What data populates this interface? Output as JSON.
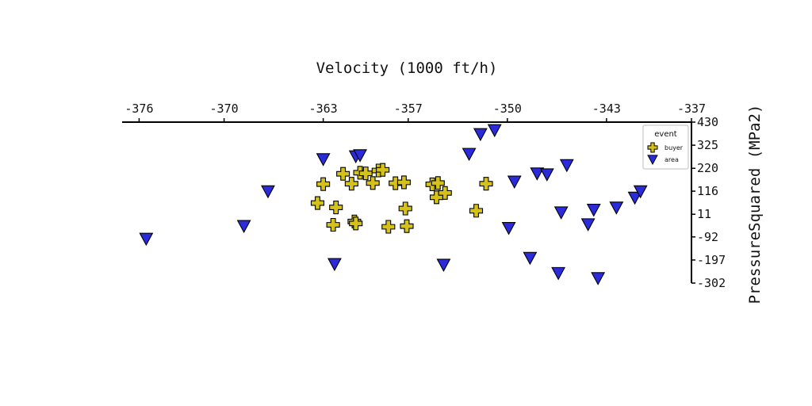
{
  "chart_data": {
    "type": "scatter",
    "xlabel": "Velocity (1000 ft/h)",
    "ylabel": "PressureSquared (MPa2)",
    "xlim": [
      -377.2,
      -337
    ],
    "ylim": [
      -302,
      430
    ],
    "x_ticks": [
      -376,
      -370,
      -363,
      -357,
      -350,
      -343,
      -337
    ],
    "x_tick_labels": [
      "-376",
      "-370",
      "-363",
      "-357",
      "-350",
      "-343",
      "-337"
    ],
    "y_ticks": [
      430,
      325,
      220,
      116,
      11,
      -92,
      -197,
      -302
    ],
    "y_tick_labels": [
      "430",
      "325",
      "220",
      "116",
      "11",
      "-92",
      "-197",
      "-302"
    ],
    "x_axis_position": "top",
    "y_axis_position": "right",
    "grid": false,
    "legend": {
      "title": "event",
      "position": "top-right"
    },
    "series": [
      {
        "name": "buyer",
        "marker": "plus",
        "color": "#d4c21a",
        "points": [
          [
            -363.4,
            62
          ],
          [
            -363.0,
            148
          ],
          [
            -362.1,
            42
          ],
          [
            -362.3,
            -37
          ],
          [
            -361.6,
            195
          ],
          [
            -361.0,
            150
          ],
          [
            -360.8,
            -22
          ],
          [
            -360.7,
            -31
          ],
          [
            -360.4,
            200
          ],
          [
            -360.0,
            197
          ],
          [
            -359.5,
            153
          ],
          [
            -359.1,
            210
          ],
          [
            -358.8,
            213
          ],
          [
            -358.4,
            -46
          ],
          [
            -357.9,
            152
          ],
          [
            -357.3,
            156
          ],
          [
            -357.1,
            -43
          ],
          [
            -357.2,
            37
          ],
          [
            -355.3,
            147
          ],
          [
            -354.9,
            153
          ],
          [
            -355.0,
            88
          ],
          [
            -354.4,
            108
          ],
          [
            -352.2,
            27
          ],
          [
            -351.5,
            150
          ]
        ]
      },
      {
        "name": "area",
        "marker": "triangle-down",
        "color": "#2b2bdc",
        "points": [
          [
            -375.5,
            -100
          ],
          [
            -368.6,
            -42
          ],
          [
            -366.9,
            116
          ],
          [
            -363.0,
            262
          ],
          [
            -362.2,
            -215
          ],
          [
            -360.7,
            275
          ],
          [
            -360.4,
            280
          ],
          [
            -354.5,
            -218
          ],
          [
            -352.7,
            286
          ],
          [
            -351.9,
            376
          ],
          [
            -350.9,
            394
          ],
          [
            -349.9,
            -51
          ],
          [
            -349.5,
            160
          ],
          [
            -348.4,
            -187
          ],
          [
            -347.9,
            197
          ],
          [
            -347.2,
            193
          ],
          [
            -346.4,
            -256
          ],
          [
            -346.2,
            20
          ],
          [
            -345.8,
            235
          ],
          [
            -344.3,
            -34
          ],
          [
            -343.6,
            -279
          ],
          [
            -343.9,
            32
          ],
          [
            -342.3,
            42
          ],
          [
            -341.0,
            87
          ],
          [
            -340.6,
            116
          ]
        ]
      }
    ]
  }
}
